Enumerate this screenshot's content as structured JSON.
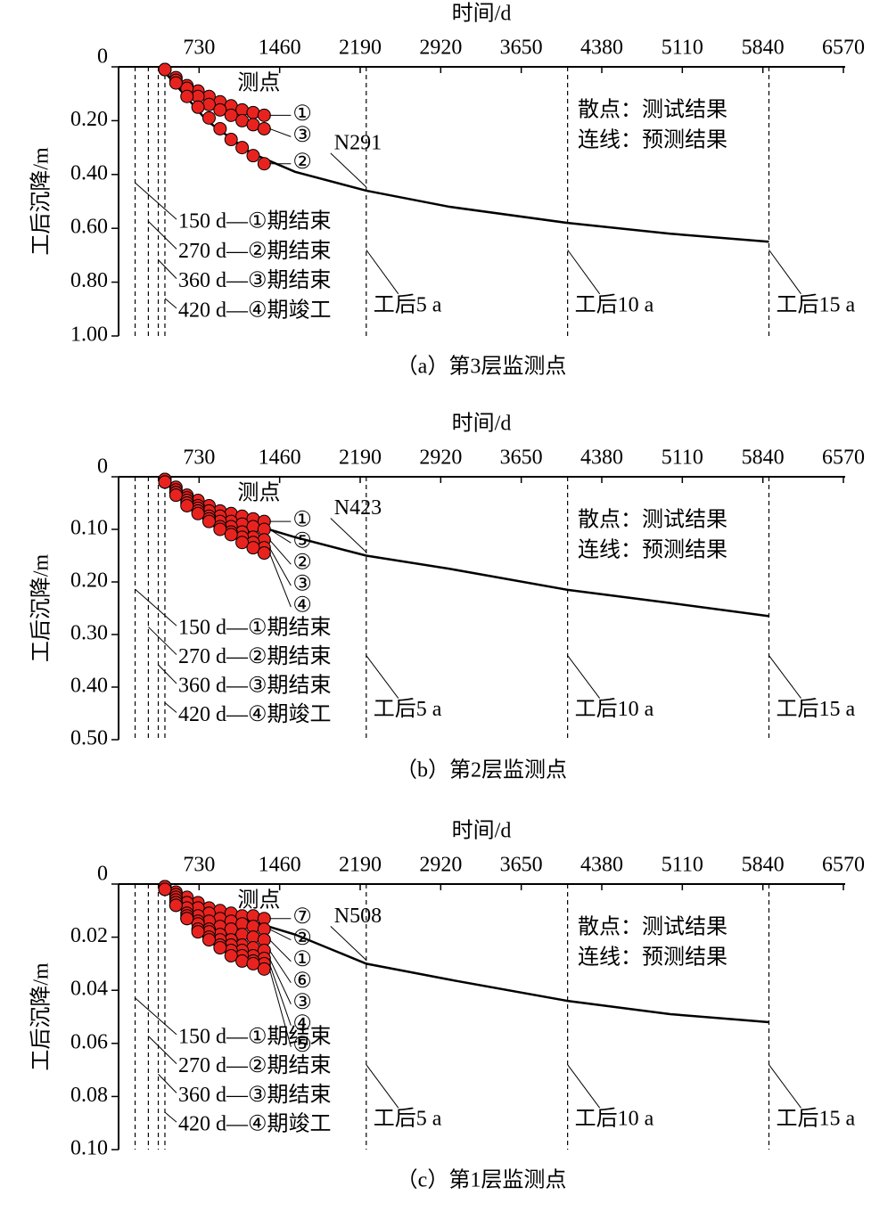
{
  "chart_data": [
    {
      "type": "scatter",
      "title": "（a）第3层监测点",
      "x_label": "时间/d",
      "y_label": "工后沉降/m",
      "xlim": [
        0,
        6570
      ],
      "xticks": [
        730,
        1460,
        2190,
        2920,
        3650,
        4380,
        5110,
        5840,
        6570
      ],
      "ylim": [
        0,
        1
      ],
      "yticks": [
        0,
        {
          "value": 0.2,
          "label": "0.20"
        },
        {
          "value": 0.4,
          "label": "0.40"
        },
        {
          "value": 0.6,
          "label": "0.60"
        },
        {
          "value": 0.8,
          "label": "0.80"
        },
        {
          "value": 1,
          "label": "1.00"
        }
      ],
      "y_inverted": true,
      "x": [
        420,
        520,
        620,
        720,
        820,
        920,
        1020,
        1120,
        1220,
        1320
      ],
      "series": [
        {
          "name": "①",
          "color": "#e8231f",
          "values": [
            0.01,
            0.04,
            0.07,
            0.09,
            0.11,
            0.13,
            0.145,
            0.16,
            0.17,
            0.18
          ]
        },
        {
          "name": "③",
          "color": "#e8231f",
          "values": [
            0.01,
            0.05,
            0.08,
            0.11,
            0.14,
            0.16,
            0.18,
            0.2,
            0.215,
            0.23
          ]
        },
        {
          "name": "②",
          "color": "#e8231f",
          "values": [
            0.01,
            0.06,
            0.11,
            0.15,
            0.19,
            0.23,
            0.27,
            0.3,
            0.33,
            0.36
          ]
        }
      ],
      "line": {
        "name": "N291",
        "color": "#000000",
        "x": [
          420,
          800,
          1200,
          1600,
          2245,
          3000,
          4070,
          5000,
          5895
        ],
        "values": [
          0.02,
          0.2,
          0.32,
          0.39,
          0.46,
          0.52,
          0.58,
          0.62,
          0.65
        ]
      },
      "markers": [
        {
          "x": 150,
          "label": "150 d—①期结束"
        },
        {
          "x": 270,
          "label": "270 d—②期结束"
        },
        {
          "x": 360,
          "label": "360 d—③期结束"
        },
        {
          "x": 420,
          "label": "420 d—④期竣工"
        },
        {
          "x": 2245,
          "label": "工后5 a"
        },
        {
          "x": 4070,
          "label": "工后10 a"
        },
        {
          "x": 5895,
          "label": "工后15 a"
        }
      ],
      "annotations": [
        "测点",
        "散点：测试结果",
        "连线：预测结果"
      ]
    },
    {
      "type": "scatter",
      "title": "（b）第2层监测点",
      "x_label": "时间/d",
      "y_label": "工后沉降/m",
      "xlim": [
        0,
        6570
      ],
      "xticks": [
        730,
        1460,
        2190,
        2920,
        3650,
        4380,
        5110,
        5840,
        6570
      ],
      "ylim": [
        0,
        0.5
      ],
      "yticks": [
        0,
        {
          "value": 0.1,
          "label": "0.10"
        },
        {
          "value": 0.2,
          "label": "0.20"
        },
        {
          "value": 0.3,
          "label": "0.30"
        },
        {
          "value": 0.4,
          "label": "0.40"
        },
        {
          "value": 0.5,
          "label": "0.50"
        }
      ],
      "y_inverted": true,
      "x": [
        420,
        520,
        620,
        720,
        820,
        920,
        1020,
        1120,
        1220,
        1320
      ],
      "series": [
        {
          "name": "①",
          "color": "#e8231f",
          "values": [
            0.005,
            0.02,
            0.035,
            0.045,
            0.055,
            0.065,
            0.07,
            0.075,
            0.08,
            0.085
          ]
        },
        {
          "name": "⑤",
          "color": "#e8231f",
          "values": [
            0.005,
            0.025,
            0.04,
            0.055,
            0.065,
            0.075,
            0.085,
            0.09,
            0.095,
            0.1
          ]
        },
        {
          "name": "②",
          "color": "#e8231f",
          "values": [
            0.005,
            0.03,
            0.045,
            0.06,
            0.075,
            0.085,
            0.095,
            0.105,
            0.115,
            0.12
          ]
        },
        {
          "name": "③",
          "color": "#e8231f",
          "values": [
            0.01,
            0.03,
            0.05,
            0.065,
            0.08,
            0.095,
            0.105,
            0.115,
            0.125,
            0.135
          ]
        },
        {
          "name": "④",
          "color": "#e8231f",
          "values": [
            0.01,
            0.035,
            0.055,
            0.07,
            0.085,
            0.1,
            0.11,
            0.125,
            0.135,
            0.145
          ]
        }
      ],
      "line": {
        "name": "N423",
        "color": "#000000",
        "x": [
          420,
          800,
          1200,
          1600,
          2245,
          3000,
          4070,
          5000,
          5895
        ],
        "values": [
          0.005,
          0.06,
          0.09,
          0.115,
          0.15,
          0.175,
          0.215,
          0.24,
          0.265
        ]
      },
      "markers": [
        {
          "x": 150,
          "label": "150 d—①期结束"
        },
        {
          "x": 270,
          "label": "270 d—②期结束"
        },
        {
          "x": 360,
          "label": "360 d—③期结束"
        },
        {
          "x": 420,
          "label": "420 d—④期竣工"
        },
        {
          "x": 2245,
          "label": "工后5 a"
        },
        {
          "x": 4070,
          "label": "工后10 a"
        },
        {
          "x": 5895,
          "label": "工后15 a"
        }
      ],
      "annotations": [
        "测点",
        "散点：测试结果",
        "连线：预测结果"
      ]
    },
    {
      "type": "scatter",
      "title": "（c）第1层监测点",
      "x_label": "时间/d",
      "y_label": "工后沉降/m",
      "xlim": [
        0,
        6570
      ],
      "xticks": [
        730,
        1460,
        2190,
        2920,
        3650,
        4380,
        5110,
        5840,
        6570
      ],
      "ylim": [
        0,
        0.1
      ],
      "yticks": [
        0,
        {
          "value": 0.02,
          "label": "0.02"
        },
        {
          "value": 0.04,
          "label": "0.04"
        },
        {
          "value": 0.06,
          "label": "0.06"
        },
        {
          "value": 0.08,
          "label": "0.08"
        },
        {
          "value": 0.1,
          "label": "0.10"
        }
      ],
      "y_inverted": true,
      "x": [
        420,
        520,
        620,
        720,
        820,
        920,
        1020,
        1120,
        1220,
        1320
      ],
      "series": [
        {
          "name": "⑦",
          "color": "#e8231f",
          "values": [
            0.001,
            0.003,
            0.005,
            0.007,
            0.009,
            0.01,
            0.011,
            0.012,
            0.012,
            0.013
          ]
        },
        {
          "name": "②",
          "color": "#e8231f",
          "values": [
            0.001,
            0.004,
            0.007,
            0.009,
            0.011,
            0.013,
            0.014,
            0.015,
            0.016,
            0.017
          ]
        },
        {
          "name": "①",
          "color": "#e8231f",
          "values": [
            0.001,
            0.005,
            0.009,
            0.012,
            0.014,
            0.016,
            0.017,
            0.019,
            0.02,
            0.021
          ]
        },
        {
          "name": "⑥",
          "color": "#e8231f",
          "values": [
            0.001,
            0.006,
            0.011,
            0.014,
            0.017,
            0.019,
            0.021,
            0.023,
            0.024,
            0.025
          ]
        },
        {
          "name": "③",
          "color": "#e8231f",
          "values": [
            0.001,
            0.007,
            0.012,
            0.015,
            0.018,
            0.021,
            0.023,
            0.025,
            0.027,
            0.028
          ]
        },
        {
          "name": "④",
          "color": "#e8231f",
          "values": [
            0.002,
            0.008,
            0.013,
            0.017,
            0.02,
            0.023,
            0.025,
            0.027,
            0.029,
            0.03
          ]
        },
        {
          "name": "⑤",
          "color": "#e8231f",
          "values": [
            0.002,
            0.008,
            0.013,
            0.018,
            0.021,
            0.024,
            0.027,
            0.029,
            0.03,
            0.032
          ]
        }
      ],
      "line": {
        "name": "N508",
        "color": "#000000",
        "x": [
          420,
          800,
          1200,
          1600,
          2245,
          3000,
          4070,
          5000,
          5895
        ],
        "values": [
          0.001,
          0.008,
          0.014,
          0.019,
          0.03,
          0.036,
          0.044,
          0.049,
          0.052
        ]
      },
      "markers": [
        {
          "x": 150,
          "label": "150 d—①期结束"
        },
        {
          "x": 270,
          "label": "270 d—②期结束"
        },
        {
          "x": 360,
          "label": "360 d—③期结束"
        },
        {
          "x": 420,
          "label": "420 d—④期竣工"
        },
        {
          "x": 2245,
          "label": "工后5 a"
        },
        {
          "x": 4070,
          "label": "工后10 a"
        },
        {
          "x": 5895,
          "label": "工后15 a"
        }
      ],
      "annotations": [
        "测点",
        "散点：测试结果",
        "连线：预测结果"
      ]
    }
  ]
}
